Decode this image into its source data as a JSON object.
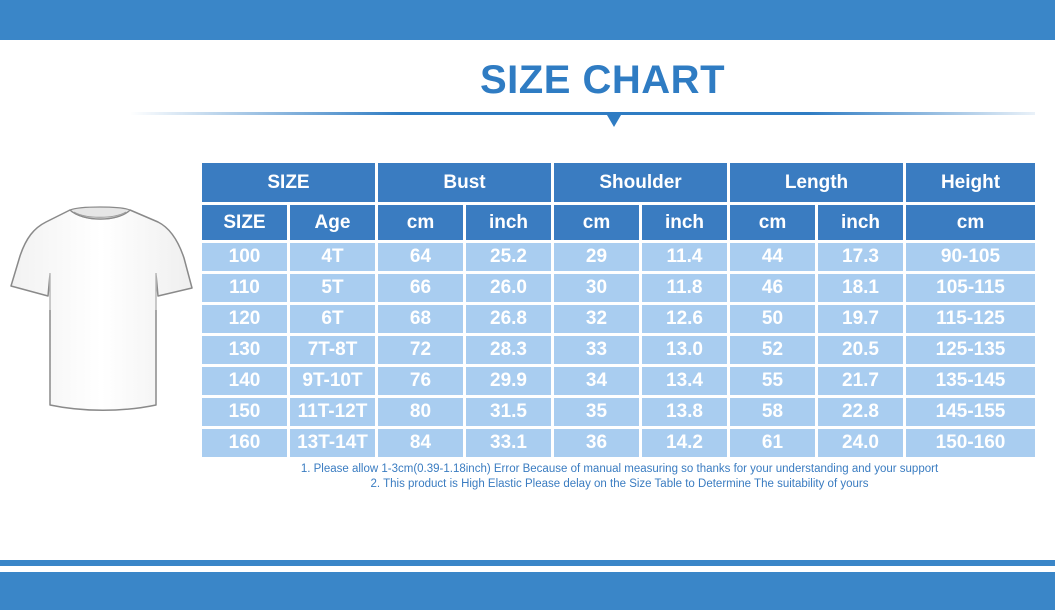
{
  "title": "SIZE CHART",
  "colors": {
    "brand_blue": "#3a86c8",
    "header_blue": "#3a7cc1",
    "cell_blue": "#a9cdf0",
    "text_white": "#ffffff"
  },
  "product_image": "tshirt-white",
  "table": {
    "groups": [
      "SIZE",
      "Bust",
      "Shoulder",
      "Length",
      "Height"
    ],
    "subheaders": [
      "SIZE",
      "Age",
      "cm",
      "inch",
      "cm",
      "inch",
      "cm",
      "inch",
      "cm"
    ],
    "rows": [
      [
        "100",
        "4T",
        "64",
        "25.2",
        "29",
        "11.4",
        "44",
        "17.3",
        "90-105"
      ],
      [
        "110",
        "5T",
        "66",
        "26.0",
        "30",
        "11.8",
        "46",
        "18.1",
        "105-115"
      ],
      [
        "120",
        "6T",
        "68",
        "26.8",
        "32",
        "12.6",
        "50",
        "19.7",
        "115-125"
      ],
      [
        "130",
        "7T-8T",
        "72",
        "28.3",
        "33",
        "13.0",
        "52",
        "20.5",
        "125-135"
      ],
      [
        "140",
        "9T-10T",
        "76",
        "29.9",
        "34",
        "13.4",
        "55",
        "21.7",
        "135-145"
      ],
      [
        "150",
        "11T-12T",
        "80",
        "31.5",
        "35",
        "13.8",
        "58",
        "22.8",
        "145-155"
      ],
      [
        "160",
        "13T-14T",
        "84",
        "33.1",
        "36",
        "14.2",
        "61",
        "24.0",
        "150-160"
      ]
    ]
  },
  "notes": [
    "1. Please allow 1-3cm(0.39-1.18inch) Error Because of manual measuring so thanks for your understanding and your support",
    "2. This product is High Elastic Please delay on the Size Table to Determine The suitability of yours"
  ]
}
